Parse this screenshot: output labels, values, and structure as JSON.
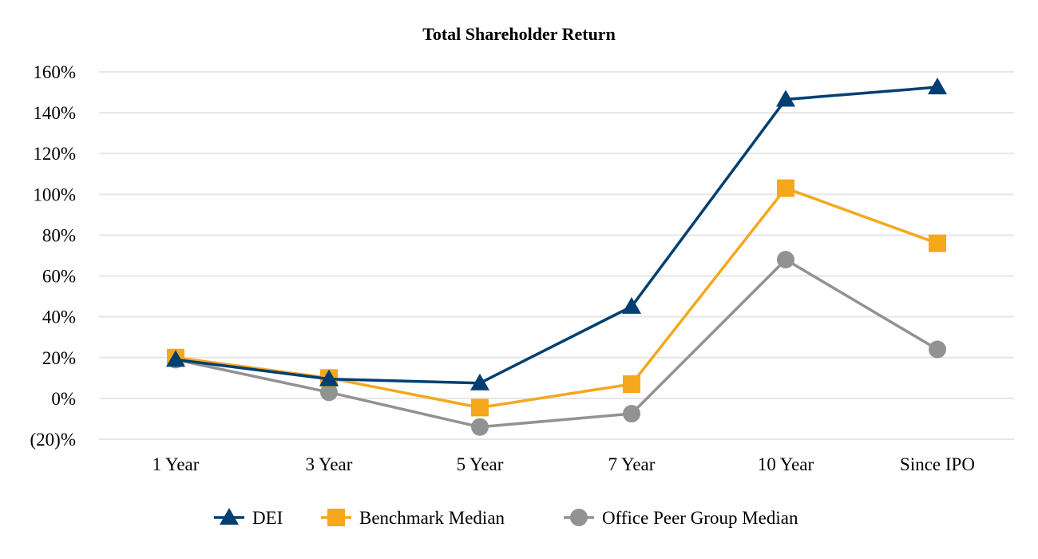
{
  "chart_data": {
    "type": "line",
    "title": "Total Shareholder Return",
    "categories": [
      "1 Year",
      "3 Year",
      "5 Year",
      "7 Year",
      "10 Year",
      "Since IPO"
    ],
    "ylim": [
      -20,
      160
    ],
    "y_ticks": [
      -20,
      0,
      20,
      40,
      60,
      80,
      100,
      120,
      140,
      160
    ],
    "y_tick_labels": [
      "(20)%",
      "0%",
      "20%",
      "40%",
      "60%",
      "80%",
      "100%",
      "120%",
      "140%",
      "160%"
    ],
    "grid": "horizontal",
    "legend_position": "bottom",
    "series": [
      {
        "name": "DEI",
        "values": [
          19,
          9.5,
          7.5,
          45,
          146.5,
          152.5
        ],
        "color": "#003f72",
        "marker": "triangle"
      },
      {
        "name": "Benchmark Median",
        "values": [
          20,
          10,
          -4.5,
          7,
          103,
          76
        ],
        "color": "#f5a81c",
        "marker": "square"
      },
      {
        "name": "Office Peer Group Median",
        "values": [
          19,
          3,
          -14,
          -7.5,
          68,
          24
        ],
        "color": "#929292",
        "marker": "circle"
      }
    ]
  }
}
